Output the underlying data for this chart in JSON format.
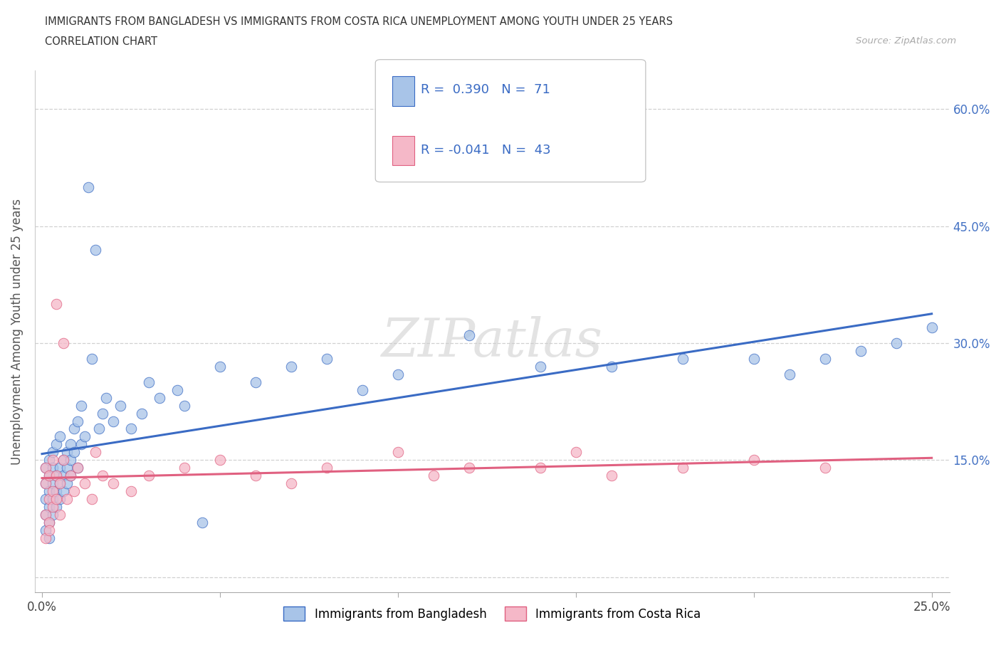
{
  "title_line1": "IMMIGRANTS FROM BANGLADESH VS IMMIGRANTS FROM COSTA RICA UNEMPLOYMENT AMONG YOUTH UNDER 25 YEARS",
  "title_line2": "CORRELATION CHART",
  "source_text": "Source: ZipAtlas.com",
  "ylabel": "Unemployment Among Youth under 25 years",
  "xlim": [
    -0.002,
    0.255
  ],
  "ylim": [
    -0.02,
    0.65
  ],
  "ytick_positions": [
    0.0,
    0.15,
    0.3,
    0.45,
    0.6
  ],
  "ytick_labels": [
    "",
    "15.0%",
    "30.0%",
    "45.0%",
    "60.0%"
  ],
  "xtick_positions": [
    0.0,
    0.05,
    0.1,
    0.15,
    0.2,
    0.25
  ],
  "xtick_labels": [
    "0.0%",
    "",
    "",
    "",
    "",
    "25.0%"
  ],
  "bangladesh_R": 0.39,
  "bangladesh_N": 71,
  "costarica_R": -0.041,
  "costarica_N": 43,
  "bangladesh_color": "#a8c4e8",
  "costarica_color": "#f5b8c8",
  "bangladesh_line_color": "#3a6bc4",
  "costarica_line_color": "#e06080",
  "watermark": "ZIPatlas",
  "legend_label_bangladesh": "Immigrants from Bangladesh",
  "legend_label_costarica": "Immigrants from Costa Rica",
  "bangladesh_x": [
    0.001,
    0.001,
    0.001,
    0.001,
    0.001,
    0.002,
    0.002,
    0.002,
    0.002,
    0.002,
    0.002,
    0.003,
    0.003,
    0.003,
    0.003,
    0.003,
    0.004,
    0.004,
    0.004,
    0.004,
    0.005,
    0.005,
    0.005,
    0.005,
    0.006,
    0.006,
    0.006,
    0.007,
    0.007,
    0.007,
    0.008,
    0.008,
    0.008,
    0.009,
    0.009,
    0.01,
    0.01,
    0.011,
    0.011,
    0.012,
    0.013,
    0.014,
    0.015,
    0.016,
    0.017,
    0.018,
    0.02,
    0.022,
    0.025,
    0.028,
    0.03,
    0.033,
    0.038,
    0.04,
    0.045,
    0.05,
    0.06,
    0.07,
    0.08,
    0.09,
    0.1,
    0.12,
    0.14,
    0.16,
    0.18,
    0.2,
    0.21,
    0.22,
    0.23,
    0.24,
    0.25
  ],
  "bangladesh_y": [
    0.08,
    0.06,
    0.1,
    0.12,
    0.14,
    0.07,
    0.09,
    0.11,
    0.13,
    0.15,
    0.05,
    0.1,
    0.08,
    0.14,
    0.12,
    0.16,
    0.09,
    0.13,
    0.11,
    0.17,
    0.12,
    0.14,
    0.1,
    0.18,
    0.11,
    0.15,
    0.13,
    0.14,
    0.16,
    0.12,
    0.13,
    0.17,
    0.15,
    0.16,
    0.19,
    0.14,
    0.2,
    0.17,
    0.22,
    0.18,
    0.5,
    0.28,
    0.42,
    0.19,
    0.21,
    0.23,
    0.2,
    0.22,
    0.19,
    0.21,
    0.25,
    0.23,
    0.24,
    0.22,
    0.07,
    0.27,
    0.25,
    0.27,
    0.28,
    0.24,
    0.26,
    0.31,
    0.27,
    0.27,
    0.28,
    0.28,
    0.26,
    0.28,
    0.29,
    0.3,
    0.32
  ],
  "costarica_x": [
    0.001,
    0.001,
    0.001,
    0.001,
    0.002,
    0.002,
    0.002,
    0.002,
    0.003,
    0.003,
    0.003,
    0.004,
    0.004,
    0.004,
    0.005,
    0.005,
    0.006,
    0.006,
    0.007,
    0.008,
    0.009,
    0.01,
    0.012,
    0.014,
    0.015,
    0.017,
    0.02,
    0.025,
    0.03,
    0.04,
    0.05,
    0.06,
    0.07,
    0.08,
    0.1,
    0.11,
    0.12,
    0.14,
    0.15,
    0.16,
    0.18,
    0.2,
    0.22
  ],
  "costarica_y": [
    0.05,
    0.08,
    0.12,
    0.14,
    0.07,
    0.1,
    0.13,
    0.06,
    0.09,
    0.11,
    0.15,
    0.1,
    0.13,
    0.35,
    0.08,
    0.12,
    0.3,
    0.15,
    0.1,
    0.13,
    0.11,
    0.14,
    0.12,
    0.1,
    0.16,
    0.13,
    0.12,
    0.11,
    0.13,
    0.14,
    0.15,
    0.13,
    0.12,
    0.14,
    0.16,
    0.13,
    0.14,
    0.14,
    0.16,
    0.13,
    0.14,
    0.15,
    0.14
  ]
}
